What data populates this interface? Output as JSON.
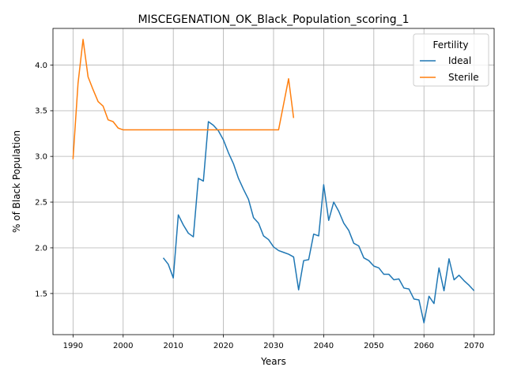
{
  "chart_data": {
    "type": "line",
    "title": "MISCEGENATION_OK_Black_Population_scoring_1",
    "xlabel": "Years",
    "ylabel": "% of Black Population",
    "xlim": [
      1986,
      2074
    ],
    "ylim": [
      1.05,
      4.4
    ],
    "xticks": [
      1990,
      2000,
      2010,
      2020,
      2030,
      2040,
      2050,
      2060,
      2070
    ],
    "yticks": [
      1.5,
      2.0,
      2.5,
      3.0,
      3.5,
      4.0
    ],
    "xtick_labels": [
      "1990",
      "2000",
      "2010",
      "2020",
      "2030",
      "2040",
      "2050",
      "2060",
      "2070"
    ],
    "ytick_labels": [
      "1.5",
      "2.0",
      "2.5",
      "3.0",
      "3.5",
      "4.0"
    ],
    "grid": true,
    "legend": {
      "title": "Fertility",
      "placement": "top-right"
    },
    "series": [
      {
        "name": "Ideal",
        "color": "#1f77b4",
        "x": [
          2008,
          2009,
          2010,
          2011,
          2012,
          2013,
          2014,
          2015,
          2016,
          2017,
          2018,
          2019,
          2020,
          2021,
          2022,
          2023,
          2024,
          2025,
          2026,
          2027,
          2028,
          2029,
          2030,
          2031,
          2032,
          2033,
          2034,
          2035,
          2036,
          2037,
          2038,
          2039,
          2040,
          2041,
          2042,
          2043,
          2044,
          2045,
          2046,
          2047,
          2048,
          2049,
          2050,
          2051,
          2052,
          2053,
          2054,
          2055,
          2056,
          2057,
          2058,
          2059,
          2060,
          2061,
          2062,
          2063,
          2064,
          2065,
          2066,
          2067,
          2068,
          2069,
          2070
        ],
        "values": [
          1.89,
          1.82,
          1.67,
          2.36,
          2.25,
          2.16,
          2.12,
          2.76,
          2.73,
          3.38,
          3.34,
          3.28,
          3.18,
          3.04,
          2.92,
          2.76,
          2.64,
          2.53,
          2.33,
          2.27,
          2.13,
          2.09,
          2.01,
          1.97,
          1.95,
          1.93,
          1.9,
          1.54,
          1.86,
          1.87,
          2.15,
          2.13,
          2.69,
          2.3,
          2.5,
          2.4,
          2.27,
          2.19,
          2.05,
          2.02,
          1.89,
          1.86,
          1.8,
          1.78,
          1.71,
          1.71,
          1.65,
          1.66,
          1.56,
          1.55,
          1.44,
          1.43,
          1.18,
          1.47,
          1.39,
          1.78,
          1.53,
          1.88,
          1.65,
          1.7,
          1.64,
          1.59,
          1.53
        ]
      },
      {
        "name": "Sterile",
        "color": "#ff7f0e",
        "x": [
          1990,
          1991,
          1992,
          1993,
          1994,
          1995,
          1996,
          1997,
          1998,
          1999,
          2000,
          2001,
          2002,
          2003,
          2004,
          2005,
          2006,
          2007,
          2008,
          2009,
          2010,
          2011,
          2012,
          2013,
          2014,
          2015,
          2016,
          2017,
          2018,
          2019,
          2020,
          2021,
          2022,
          2023,
          2024,
          2025,
          2026,
          2027,
          2028,
          2029,
          2030,
          2031,
          2032,
          2033,
          2034
        ],
        "values": [
          2.97,
          3.8,
          4.28,
          3.87,
          3.73,
          3.6,
          3.55,
          3.4,
          3.38,
          3.31,
          3.29,
          3.29,
          3.29,
          3.29,
          3.29,
          3.29,
          3.29,
          3.29,
          3.29,
          3.29,
          3.29,
          3.29,
          3.29,
          3.29,
          3.29,
          3.29,
          3.29,
          3.29,
          3.29,
          3.29,
          3.29,
          3.29,
          3.29,
          3.29,
          3.29,
          3.29,
          3.29,
          3.29,
          3.29,
          3.29,
          3.29,
          3.29,
          3.57,
          3.85,
          3.42
        ]
      }
    ]
  }
}
